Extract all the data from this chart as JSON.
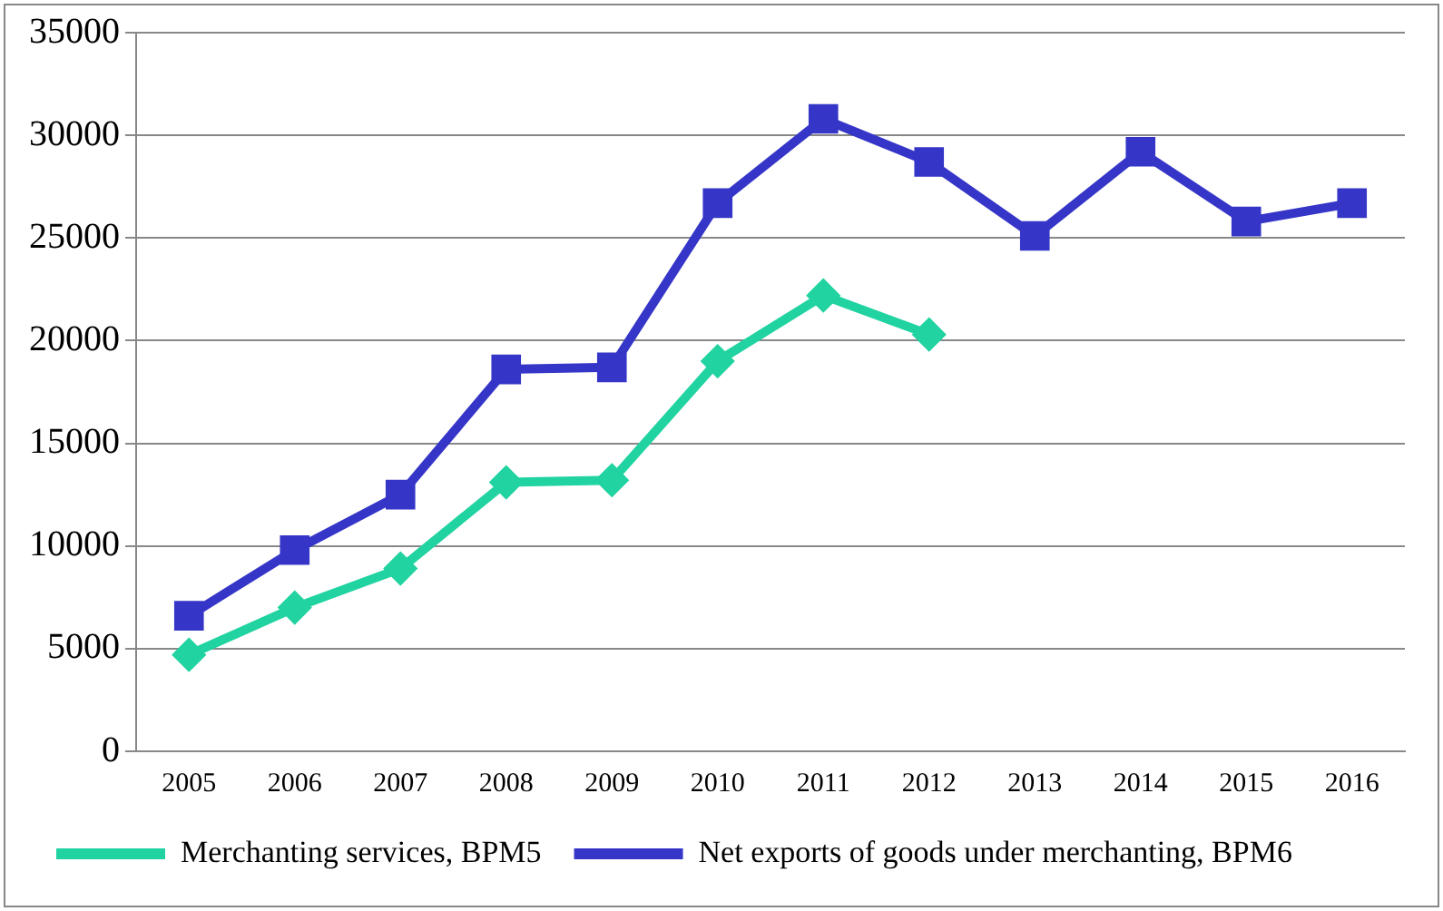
{
  "chart_data": {
    "type": "line",
    "categories": [
      "2005",
      "2006",
      "2007",
      "2008",
      "2009",
      "2010",
      "2011",
      "2012",
      "2013",
      "2014",
      "2015",
      "2016"
    ],
    "series": [
      {
        "name": "Merchanting services, BPM5",
        "color": "#20d3a0",
        "marker": "diamond",
        "values": [
          4700,
          7000,
          8900,
          13100,
          13200,
          19000,
          22200,
          20300,
          null,
          null,
          null,
          null
        ]
      },
      {
        "name": "Net exports of goods under merchanting, BPM6",
        "color": "#3535c8",
        "marker": "square",
        "values": [
          6600,
          9800,
          12500,
          18600,
          18700,
          26700,
          30800,
          28700,
          25100,
          29200,
          25800,
          26700
        ]
      }
    ],
    "ylim": [
      0,
      35000
    ],
    "yticks": [
      0,
      5000,
      10000,
      15000,
      20000,
      25000,
      30000,
      35000
    ],
    "grid": "y",
    "legend": "bottom",
    "line_style": "solid"
  }
}
